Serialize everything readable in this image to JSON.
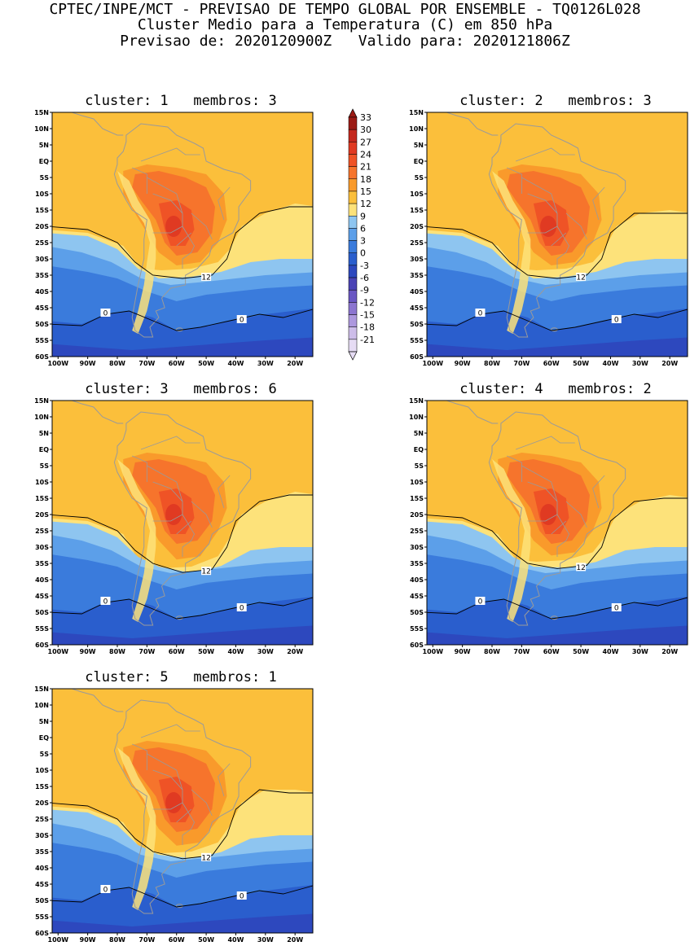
{
  "header": {
    "line1": "CPTEC/INPE/MCT - PREVISAO DE TEMPO GLOBAL POR ENSEMBLE - TQ0126L028",
    "line2": "Cluster Medio para a Temperatura (C) em 850 hPa",
    "line3": "Previsao de: 2020120900Z   Valido para: 2020121806Z"
  },
  "lat_labels": [
    "15N",
    "10N",
    "5N",
    "EQ",
    "5S",
    "10S",
    "15S",
    "20S",
    "25S",
    "30S",
    "35S",
    "40S",
    "45S",
    "50S",
    "55S",
    "60S"
  ],
  "lon_labels": [
    "100W",
    "90W",
    "80W",
    "70W",
    "60W",
    "50W",
    "40W",
    "30W",
    "20W"
  ],
  "legend": {
    "values": [
      "33",
      "30",
      "27",
      "24",
      "21",
      "18",
      "15",
      "12",
      "9",
      "6",
      "3",
      "0",
      "-3",
      "-6",
      "-9",
      "-12",
      "-15",
      "-18",
      "-21"
    ],
    "colors": [
      "#9c1b15",
      "#c4281d",
      "#e03a22",
      "#ef5326",
      "#f6742c",
      "#f99a2b",
      "#fbbf3b",
      "#fde27a",
      "#8ec5f0",
      "#5c9fe9",
      "#3a7bdc",
      "#2a5ecd",
      "#2d48be",
      "#4a43b5",
      "#6a57c3",
      "#8c75d0",
      "#ad98de",
      "#cdbde9",
      "#e6dcf4"
    ]
  },
  "panels": [
    {
      "title": "cluster: 1   membros: 3",
      "contour_12": "12",
      "contour_0": "0"
    },
    {
      "title": "cluster: 2   membros: 3",
      "contour_12": "12",
      "contour_0": "0"
    },
    {
      "title": "cluster: 3   membros: 6",
      "contour_12": "12",
      "contour_0": "0"
    },
    {
      "title": "cluster: 4   membros: 2",
      "contour_12": "12",
      "contour_0": "0"
    },
    {
      "title": "cluster: 5   membros: 1",
      "contour_12": "12",
      "contour_0": "0"
    }
  ]
}
